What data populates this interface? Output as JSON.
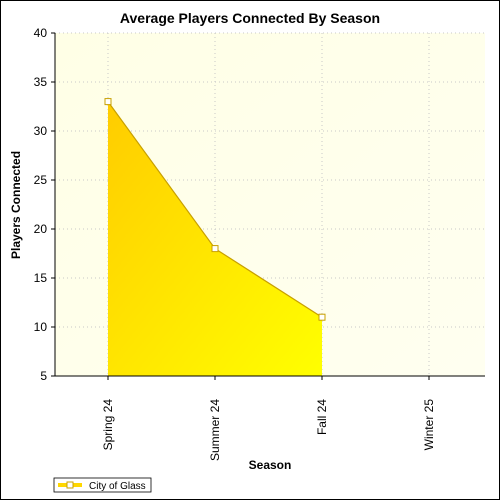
{
  "chart_data": {
    "type": "area",
    "title": "Average Players Connected By Season",
    "xlabel": "Season",
    "ylabel": "Players Connected",
    "categories": [
      "Spring 24",
      "Summer 24",
      "Fall 24",
      "Winter 25"
    ],
    "ylim": [
      5,
      40
    ],
    "yticks": [
      5,
      10,
      15,
      20,
      25,
      30,
      35,
      40
    ],
    "grid": true,
    "legend_position": "bottom-left",
    "series": [
      {
        "name": "City of Glass",
        "values": [
          33,
          18,
          11,
          null
        ],
        "color": "#ffd700",
        "line_color": "#c8a000"
      }
    ]
  },
  "colors": {
    "plot_background_start": "#ffffe6",
    "plot_background_end": "#fffff0",
    "fill_top": "#ffcc00",
    "fill_bottom": "#ffff00",
    "grid": "#c8c8c8"
  }
}
